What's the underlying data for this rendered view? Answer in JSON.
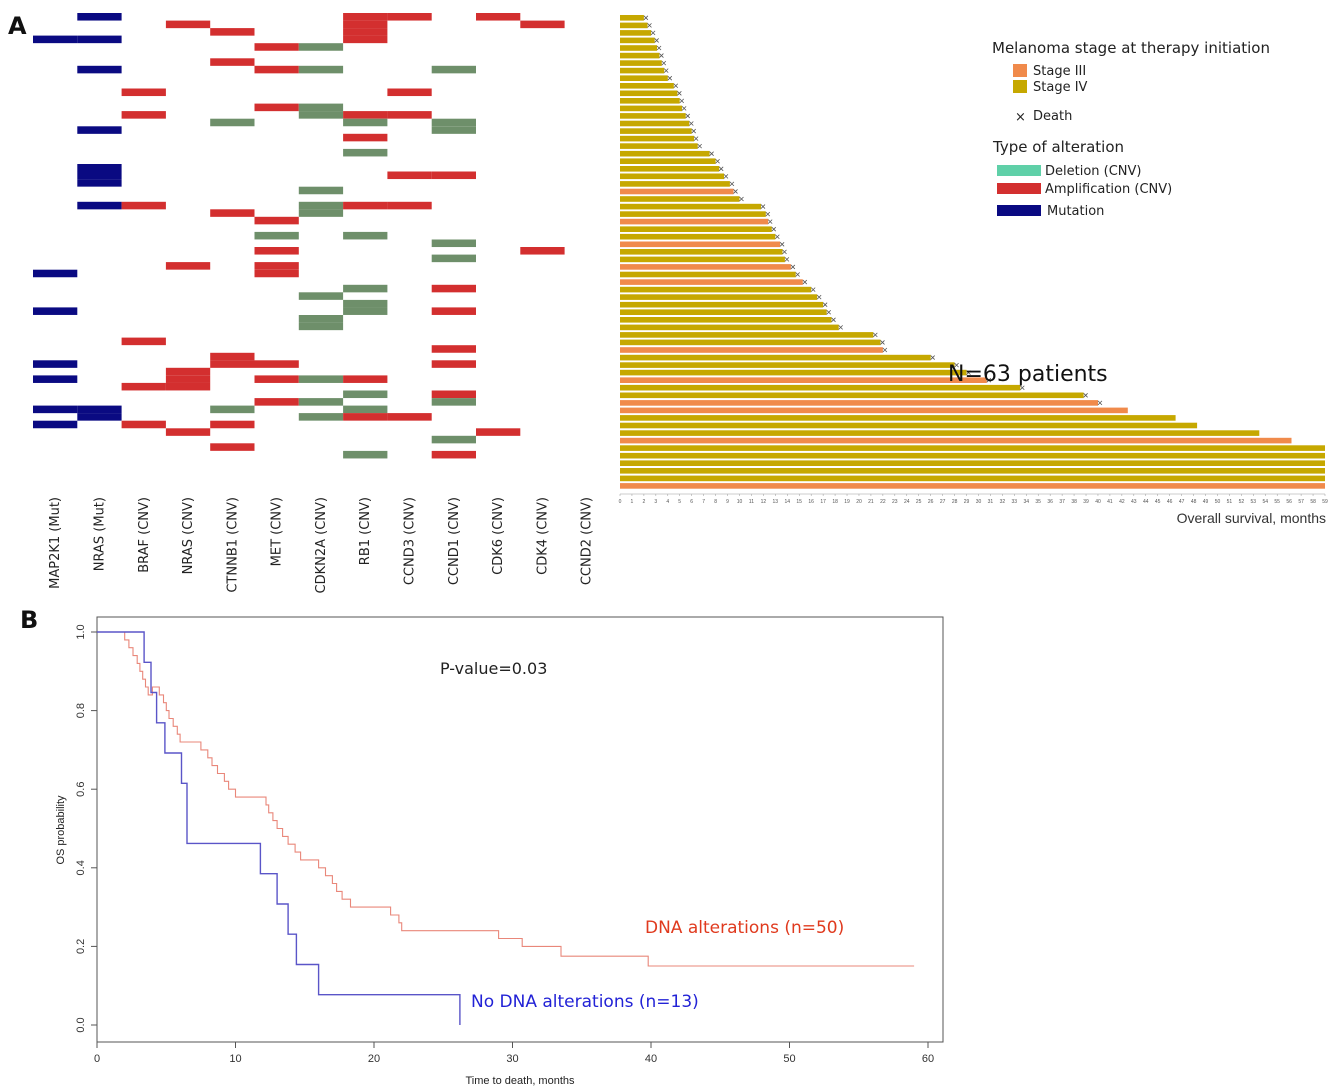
{
  "colors": {
    "mutation": "#0a0a82",
    "amplification": "#d32f2f",
    "deletion_cell": "#6e8f6a",
    "deletion_legend": "#5fd0a8",
    "stage3": "#f08a4b",
    "stage4": "#c6a800",
    "km_alt": "#e9877a",
    "km_noalt": "#5a55c8",
    "km_alt_label": "#e03a1e",
    "km_noalt_label": "#2222d6"
  },
  "panel_a": {
    "letter": "A",
    "genes": [
      "MAP2K1 (Mut)",
      "NRAS (Mut)",
      "BRAF (CNV)",
      "NRAS (CNV)",
      "CTNNB1 (CNV)",
      "MET (CNV)",
      "CDKN2A (CNV)",
      "RB1 (CNV)",
      "CCND3 (CNV)",
      "CCND1 (CNV)",
      "CDK6 (CNV)",
      "CDK4 (CNV)",
      "CCND2 (CNV)"
    ],
    "alteration_cells": [
      {
        "row": 0,
        "gene": 1,
        "type": "mut"
      },
      {
        "row": 0,
        "gene": 7,
        "type": "amp"
      },
      {
        "row": 0,
        "gene": 8,
        "type": "amp"
      },
      {
        "row": 0,
        "gene": 10,
        "type": "amp"
      },
      {
        "row": 1,
        "gene": 3,
        "type": "amp"
      },
      {
        "row": 1,
        "gene": 7,
        "type": "amp"
      },
      {
        "row": 1,
        "gene": 11,
        "type": "amp"
      },
      {
        "row": 2,
        "gene": 4,
        "type": "amp"
      },
      {
        "row": 2,
        "gene": 7,
        "type": "amp"
      },
      {
        "row": 3,
        "gene": 0,
        "type": "mut"
      },
      {
        "row": 3,
        "gene": 1,
        "type": "mut"
      },
      {
        "row": 3,
        "gene": 7,
        "type": "amp"
      },
      {
        "row": 4,
        "gene": 5,
        "type": "amp"
      },
      {
        "row": 4,
        "gene": 6,
        "type": "del"
      },
      {
        "row": 6,
        "gene": 4,
        "type": "amp"
      },
      {
        "row": 7,
        "gene": 1,
        "type": "mut"
      },
      {
        "row": 7,
        "gene": 5,
        "type": "amp"
      },
      {
        "row": 7,
        "gene": 6,
        "type": "del"
      },
      {
        "row": 7,
        "gene": 9,
        "type": "del"
      },
      {
        "row": 10,
        "gene": 2,
        "type": "amp"
      },
      {
        "row": 10,
        "gene": 8,
        "type": "amp"
      },
      {
        "row": 12,
        "gene": 5,
        "type": "amp"
      },
      {
        "row": 12,
        "gene": 6,
        "type": "del"
      },
      {
        "row": 13,
        "gene": 2,
        "type": "amp"
      },
      {
        "row": 13,
        "gene": 6,
        "type": "del"
      },
      {
        "row": 13,
        "gene": 7,
        "type": "amp"
      },
      {
        "row": 13,
        "gene": 8,
        "type": "amp"
      },
      {
        "row": 14,
        "gene": 4,
        "type": "del"
      },
      {
        "row": 14,
        "gene": 7,
        "type": "del"
      },
      {
        "row": 14,
        "gene": 9,
        "type": "del"
      },
      {
        "row": 15,
        "gene": 1,
        "type": "mut"
      },
      {
        "row": 15,
        "gene": 9,
        "type": "del"
      },
      {
        "row": 16,
        "gene": 7,
        "type": "amp"
      },
      {
        "row": 18,
        "gene": 7,
        "type": "del"
      },
      {
        "row": 20,
        "gene": 1,
        "type": "mut"
      },
      {
        "row": 21,
        "gene": 1,
        "type": "mut"
      },
      {
        "row": 21,
        "gene": 8,
        "type": "amp"
      },
      {
        "row": 21,
        "gene": 9,
        "type": "amp"
      },
      {
        "row": 22,
        "gene": 1,
        "type": "mut"
      },
      {
        "row": 23,
        "gene": 6,
        "type": "del"
      },
      {
        "row": 25,
        "gene": 1,
        "type": "mut"
      },
      {
        "row": 25,
        "gene": 2,
        "type": "amp"
      },
      {
        "row": 25,
        "gene": 6,
        "type": "del"
      },
      {
        "row": 25,
        "gene": 7,
        "type": "amp"
      },
      {
        "row": 25,
        "gene": 8,
        "type": "amp"
      },
      {
        "row": 26,
        "gene": 4,
        "type": "amp"
      },
      {
        "row": 26,
        "gene": 6,
        "type": "del"
      },
      {
        "row": 27,
        "gene": 5,
        "type": "amp"
      },
      {
        "row": 29,
        "gene": 5,
        "type": "del"
      },
      {
        "row": 29,
        "gene": 7,
        "type": "del"
      },
      {
        "row": 30,
        "gene": 9,
        "type": "del"
      },
      {
        "row": 31,
        "gene": 5,
        "type": "amp"
      },
      {
        "row": 31,
        "gene": 11,
        "type": "amp"
      },
      {
        "row": 32,
        "gene": 9,
        "type": "del"
      },
      {
        "row": 33,
        "gene": 3,
        "type": "amp"
      },
      {
        "row": 33,
        "gene": 5,
        "type": "amp"
      },
      {
        "row": 34,
        "gene": 0,
        "type": "mut"
      },
      {
        "row": 34,
        "gene": 5,
        "type": "amp"
      },
      {
        "row": 36,
        "gene": 7,
        "type": "del"
      },
      {
        "row": 36,
        "gene": 9,
        "type": "amp"
      },
      {
        "row": 37,
        "gene": 6,
        "type": "del"
      },
      {
        "row": 38,
        "gene": 7,
        "type": "del"
      },
      {
        "row": 39,
        "gene": 0,
        "type": "mut"
      },
      {
        "row": 39,
        "gene": 7,
        "type": "del"
      },
      {
        "row": 39,
        "gene": 9,
        "type": "amp"
      },
      {
        "row": 40,
        "gene": 6,
        "type": "del"
      },
      {
        "row": 41,
        "gene": 6,
        "type": "del"
      },
      {
        "row": 43,
        "gene": 2,
        "type": "amp"
      },
      {
        "row": 44,
        "gene": 9,
        "type": "amp"
      },
      {
        "row": 45,
        "gene": 4,
        "type": "amp"
      },
      {
        "row": 46,
        "gene": 0,
        "type": "mut"
      },
      {
        "row": 46,
        "gene": 4,
        "type": "amp"
      },
      {
        "row": 46,
        "gene": 5,
        "type": "amp"
      },
      {
        "row": 46,
        "gene": 9,
        "type": "amp"
      },
      {
        "row": 47,
        "gene": 3,
        "type": "amp"
      },
      {
        "row": 48,
        "gene": 0,
        "type": "mut"
      },
      {
        "row": 48,
        "gene": 3,
        "type": "amp"
      },
      {
        "row": 48,
        "gene": 5,
        "type": "amp"
      },
      {
        "row": 48,
        "gene": 6,
        "type": "del"
      },
      {
        "row": 48,
        "gene": 7,
        "type": "amp"
      },
      {
        "row": 49,
        "gene": 2,
        "type": "amp"
      },
      {
        "row": 49,
        "gene": 3,
        "type": "amp"
      },
      {
        "row": 50,
        "gene": 7,
        "type": "del"
      },
      {
        "row": 50,
        "gene": 9,
        "type": "amp"
      },
      {
        "row": 51,
        "gene": 5,
        "type": "amp"
      },
      {
        "row": 51,
        "gene": 6,
        "type": "del"
      },
      {
        "row": 51,
        "gene": 9,
        "type": "del"
      },
      {
        "row": 52,
        "gene": 0,
        "type": "mut"
      },
      {
        "row": 52,
        "gene": 1,
        "type": "mut"
      },
      {
        "row": 52,
        "gene": 4,
        "type": "del"
      },
      {
        "row": 52,
        "gene": 7,
        "type": "del"
      },
      {
        "row": 53,
        "gene": 1,
        "type": "mut"
      },
      {
        "row": 53,
        "gene": 6,
        "type": "del"
      },
      {
        "row": 53,
        "gene": 7,
        "type": "amp"
      },
      {
        "row": 53,
        "gene": 8,
        "type": "amp"
      },
      {
        "row": 54,
        "gene": 0,
        "type": "mut"
      },
      {
        "row": 54,
        "gene": 2,
        "type": "amp"
      },
      {
        "row": 54,
        "gene": 4,
        "type": "amp"
      },
      {
        "row": 55,
        "gene": 3,
        "type": "amp"
      },
      {
        "row": 55,
        "gene": 10,
        "type": "amp"
      },
      {
        "row": 56,
        "gene": 9,
        "type": "del"
      },
      {
        "row": 57,
        "gene": 4,
        "type": "amp"
      },
      {
        "row": 58,
        "gene": 7,
        "type": "del"
      },
      {
        "row": 58,
        "gene": 9,
        "type": "amp"
      }
    ],
    "legend": {
      "stage_title": "Melanoma stage at therapy initiation",
      "stage3_label": "Stage III",
      "stage4_label": "Stage IV",
      "death_symbol": "×",
      "death_label": "Death",
      "alteration_title": "Type of alteration",
      "deletion_label": "Deletion (CNV)",
      "amplification_label": "Amplification (CNV)",
      "mutation_label": "Mutation"
    },
    "patients_note": "N=63 patients",
    "os_axis_label": "Overall survival, months"
  },
  "chart_data": [
    {
      "type": "bar",
      "orientation": "horizontal",
      "description_of_axis": "Overall survival, months",
      "xlabel": "Overall survival, months",
      "xlim": [
        0,
        59
      ],
      "xticks": [
        0,
        1,
        2,
        3,
        4,
        5,
        6,
        7,
        8,
        9,
        10,
        11,
        12,
        13,
        14,
        15,
        16,
        17,
        18,
        19,
        20,
        21,
        22,
        23,
        24,
        25,
        26,
        27,
        28,
        29,
        30,
        31,
        32,
        33,
        34,
        35,
        36,
        37,
        38,
        39,
        40,
        41,
        42,
        43,
        44,
        45,
        46,
        47,
        48,
        49,
        50,
        51,
        52,
        53,
        54,
        55,
        56,
        57,
        58,
        59
      ],
      "stage_order": [
        "IV",
        "IV",
        "IV",
        "IV",
        "IV",
        "IV",
        "IV",
        "IV",
        "IV",
        "IV",
        "IV",
        "IV",
        "IV",
        "IV",
        "IV",
        "IV",
        "IV",
        "IV",
        "IV",
        "IV",
        "IV",
        "IV",
        "IV",
        "III",
        "IV",
        "IV",
        "IV",
        "III",
        "IV",
        "IV",
        "III",
        "IV",
        "IV",
        "III",
        "IV",
        "III",
        "IV",
        "IV",
        "IV",
        "IV",
        "IV",
        "IV",
        "IV",
        "IV",
        "III",
        "IV",
        "IV",
        "IV",
        "III",
        "IV",
        "IV",
        "III",
        "III",
        "IV",
        "IV",
        "IV",
        "III",
        "IV",
        "IV",
        "IV",
        "IV",
        "IV",
        "III"
      ],
      "survival_months": [
        2,
        2.3,
        2.6,
        2.9,
        3.1,
        3.3,
        3.5,
        3.7,
        4,
        4.5,
        4.8,
        5,
        5.2,
        5.5,
        5.8,
        6,
        6.2,
        6.5,
        7.5,
        8,
        8.3,
        8.7,
        9.2,
        9.5,
        10,
        11.8,
        12.2,
        12.4,
        12.7,
        13,
        13.4,
        13.6,
        13.8,
        14.3,
        14.7,
        15.3,
        16,
        16.5,
        17,
        17.3,
        17.7,
        18.3,
        21.2,
        21.8,
        22,
        26,
        28,
        29,
        30.7,
        33.5,
        38.8,
        40,
        42.5,
        46.5,
        48.3,
        53.5,
        56.2,
        59,
        59,
        59,
        59,
        59,
        59
      ],
      "death": [
        true,
        true,
        true,
        true,
        true,
        true,
        true,
        true,
        true,
        true,
        true,
        true,
        true,
        true,
        true,
        true,
        true,
        true,
        true,
        true,
        true,
        true,
        true,
        true,
        true,
        true,
        true,
        true,
        true,
        true,
        true,
        true,
        true,
        true,
        true,
        true,
        true,
        true,
        true,
        true,
        true,
        true,
        true,
        true,
        true,
        true,
        true,
        true,
        true,
        true,
        true,
        true,
        false,
        false,
        false,
        false,
        false,
        false,
        false,
        false,
        false,
        false,
        false
      ]
    },
    {
      "type": "line",
      "subtype": "kaplan-meier",
      "xlabel": "Time to death, months",
      "ylabel": "OS probability",
      "xlim": [
        0,
        60
      ],
      "ylim": [
        0,
        1
      ],
      "xticks": [
        0,
        10,
        20,
        30,
        40,
        50,
        60
      ],
      "yticks": [
        0.0,
        0.2,
        0.4,
        0.6,
        0.8,
        1.0
      ],
      "ytick_labels": [
        "0.0",
        "0.2",
        "0.4",
        "0.6",
        "0.8",
        "1.0"
      ],
      "annotation": "P-value=0.03",
      "series": [
        {
          "name": "DNA alterations (n=50)",
          "x": [
            0,
            2,
            2.3,
            2.6,
            2.9,
            3.1,
            3.3,
            3.5,
            3.7,
            4,
            4.5,
            4.8,
            5,
            5.2,
            5.5,
            5.8,
            6,
            6.2,
            6.5,
            7.5,
            8,
            8.3,
            8.7,
            9.2,
            9.5,
            10,
            12.2,
            12.4,
            12.7,
            13,
            13.4,
            13.8,
            14.3,
            14.7,
            15.3,
            16,
            16.5,
            17,
            17.3,
            17.7,
            18.3,
            21.2,
            21.8,
            22,
            29,
            30.7,
            33.5,
            39.8,
            59
          ],
          "y": [
            1.0,
            0.98,
            0.96,
            0.94,
            0.92,
            0.9,
            0.88,
            0.86,
            0.84,
            0.86,
            0.84,
            0.82,
            0.8,
            0.78,
            0.76,
            0.74,
            0.72,
            0.72,
            0.72,
            0.7,
            0.68,
            0.66,
            0.64,
            0.62,
            0.6,
            0.58,
            0.56,
            0.54,
            0.52,
            0.5,
            0.48,
            0.46,
            0.44,
            0.42,
            0.42,
            0.4,
            0.38,
            0.36,
            0.34,
            0.32,
            0.3,
            0.28,
            0.26,
            0.24,
            0.22,
            0.2,
            0.175,
            0.15,
            0.15
          ]
        },
        {
          "name": "No DNA alterations (n=13)",
          "x": [
            0,
            3.4,
            3.9,
            4.3,
            4.9,
            6.1,
            6.5,
            11.8,
            13.0,
            13.8,
            14.4,
            16.0,
            26.2
          ],
          "y": [
            1.0,
            0.923,
            0.846,
            0.769,
            0.692,
            0.615,
            0.462,
            0.385,
            0.308,
            0.231,
            0.154,
            0.077,
            0.0
          ]
        }
      ]
    }
  ],
  "panel_b": {
    "letter": "B"
  }
}
